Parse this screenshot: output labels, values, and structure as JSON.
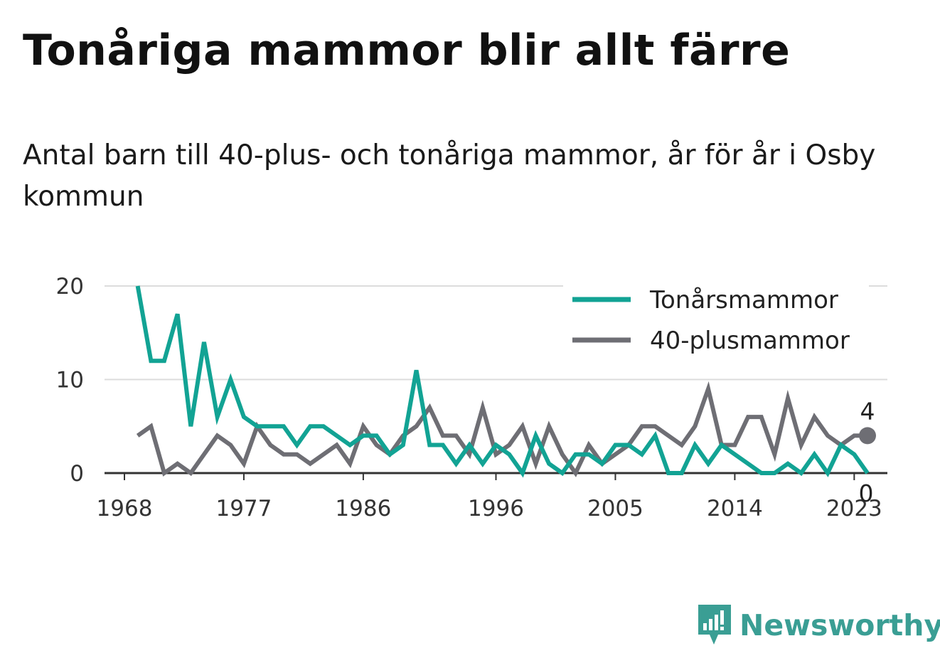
{
  "title": "Tonåriga mammor blir allt färre",
  "subtitle": "Antal barn till 40-plus- och tonåriga mammor, år för år i Osby kommun",
  "brand": {
    "name": "Newsworthy",
    "icon": "newsworthy-logo-icon",
    "color": "#3a9e94"
  },
  "chart_data": {
    "type": "line",
    "x": [
      1969,
      1970,
      1971,
      1972,
      1973,
      1974,
      1975,
      1976,
      1977,
      1978,
      1979,
      1980,
      1981,
      1982,
      1983,
      1984,
      1985,
      1986,
      1987,
      1988,
      1989,
      1990,
      1991,
      1992,
      1993,
      1994,
      1995,
      1996,
      1997,
      1998,
      1999,
      2000,
      2001,
      2002,
      2003,
      2004,
      2005,
      2006,
      2007,
      2008,
      2009,
      2010,
      2011,
      2012,
      2013,
      2014,
      2015,
      2016,
      2017,
      2018,
      2019,
      2020,
      2021,
      2022,
      2023,
      2024
    ],
    "x_ticks": [
      "1968",
      "1977",
      "1986",
      "1996",
      "2005",
      "2014",
      "2023"
    ],
    "x_tick_values": [
      1968,
      1977,
      1986,
      1996,
      2005,
      2014,
      2023
    ],
    "y_ticks": [
      "0",
      "10",
      "20"
    ],
    "y_tick_values": [
      0,
      10,
      20
    ],
    "ylim": [
      0,
      20
    ],
    "xlim": [
      1966.5,
      2025.5
    ],
    "grid": true,
    "legend_position": "top-right",
    "series": [
      {
        "name": "Tonårsmammor",
        "color": "#12a394",
        "values": [
          20,
          12,
          12,
          17,
          5,
          14,
          6,
          10,
          6,
          5,
          5,
          5,
          3,
          5,
          5,
          4,
          3,
          4,
          4,
          2,
          3,
          11,
          3,
          3,
          1,
          3,
          1,
          3,
          2,
          0,
          4,
          1,
          0,
          2,
          2,
          1,
          3,
          3,
          2,
          4,
          0,
          0,
          3,
          1,
          3,
          2,
          1,
          0,
          0,
          1,
          0,
          2,
          0,
          3,
          2,
          0
        ],
        "end_label": "0"
      },
      {
        "name": "40-plusmammor",
        "color": "#6e6e74",
        "values": [
          4,
          5,
          0,
          1,
          0,
          2,
          4,
          3,
          1,
          5,
          3,
          2,
          2,
          1,
          2,
          3,
          1,
          5,
          3,
          2,
          4,
          5,
          7,
          4,
          4,
          2,
          7,
          2,
          3,
          5,
          1,
          5,
          2,
          0,
          3,
          1,
          2,
          3,
          5,
          5,
          4,
          3,
          5,
          9,
          3,
          3,
          6,
          6,
          2,
          8,
          3,
          6,
          4,
          3,
          4,
          4
        ],
        "end_label": "4"
      }
    ]
  }
}
